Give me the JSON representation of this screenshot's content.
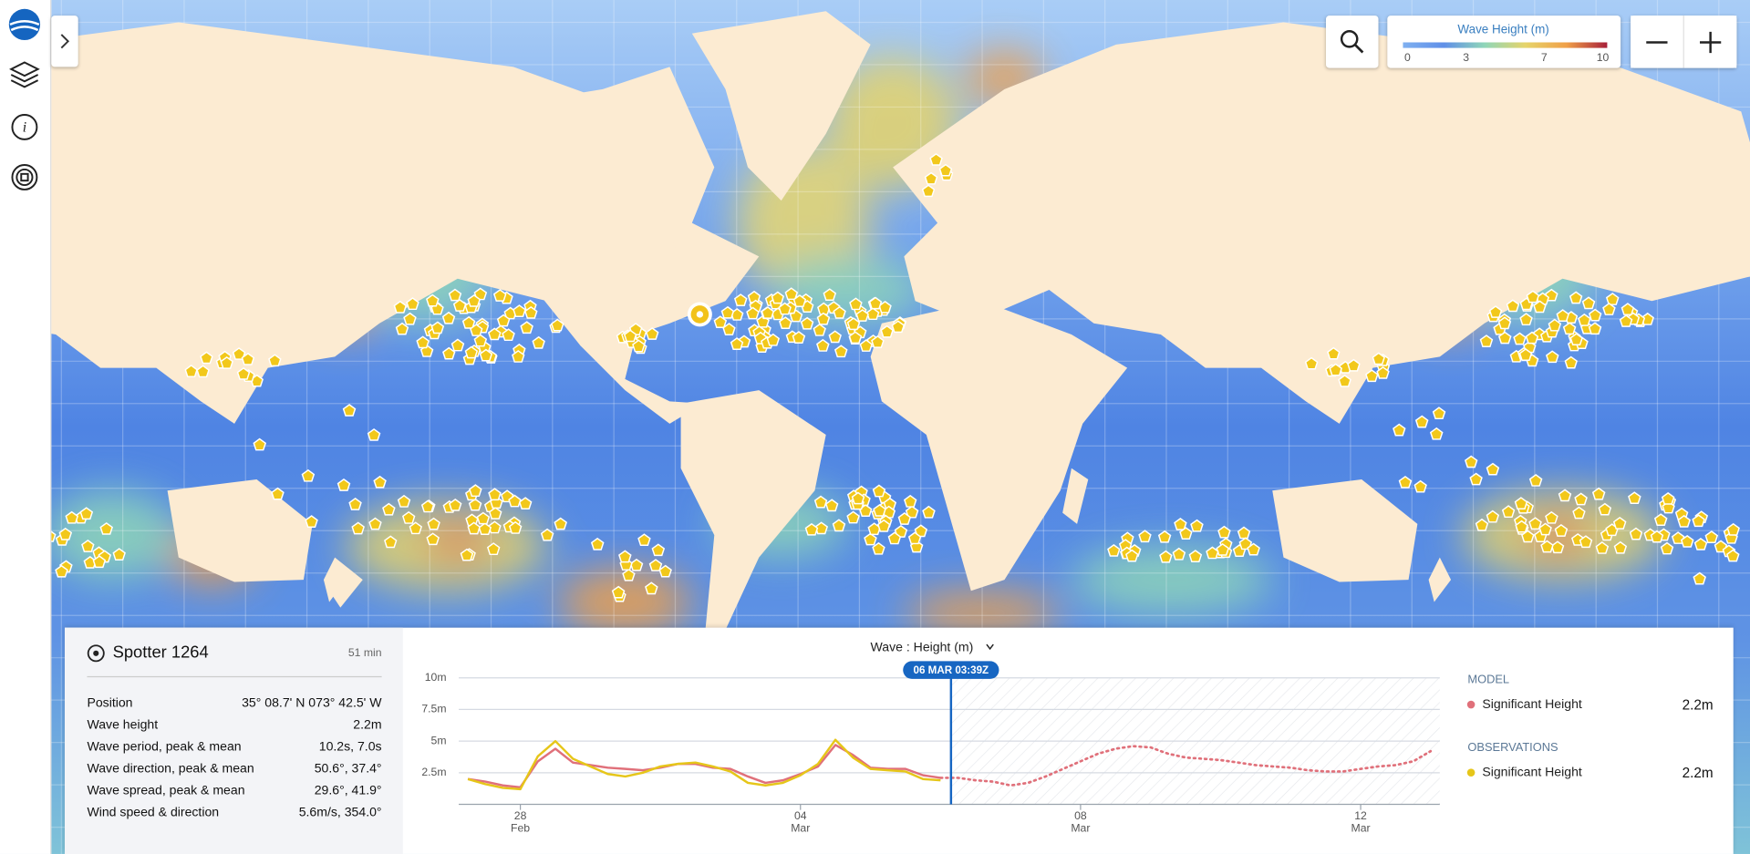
{
  "legend": {
    "title": "Wave Height (m)",
    "ticks": [
      0,
      3,
      7,
      10
    ]
  },
  "spotter": {
    "name": "Spotter 1264",
    "age": "51 min",
    "rows": [
      [
        "Position",
        "35° 08.7' N 073° 42.5' W"
      ],
      [
        "Wave height",
        "2.2m"
      ],
      [
        "Wave period, peak & mean",
        "10.2s, 7.0s"
      ],
      [
        "Wave direction, peak & mean",
        "50.6°, 37.4°"
      ],
      [
        "Wave spread, peak & mean",
        "29.6°, 41.9°"
      ],
      [
        "Wind speed & direction",
        "5.6m/s, 354.0°"
      ]
    ]
  },
  "chart_data": {
    "type": "line",
    "title": "Wave : Height (m)",
    "x": [
      27.25,
      27.5,
      27.75,
      28,
      28.25,
      28.5,
      28.75,
      29,
      29.25,
      29.5,
      29.75,
      30,
      30.25,
      30.5,
      30.75,
      31,
      31.25,
      31.5,
      31.75,
      32,
      32.25,
      32.5,
      32.75,
      33,
      33.25,
      33.5,
      33.75,
      34,
      34.25,
      34.5,
      34.75,
      35,
      35.25,
      35.5,
      35.75,
      36,
      36.25,
      36.5,
      36.75,
      37,
      37.25,
      37.5,
      37.75,
      38,
      38.25,
      38.5,
      38.75,
      39,
      39.25,
      39.5,
      39.75,
      40,
      40.25,
      40.5,
      40.75,
      41
    ],
    "xlim": [
      27.12,
      41.13
    ],
    "xticks": [
      {
        "value": 28,
        "label": "28",
        "sublabel": "Feb"
      },
      {
        "value": 32,
        "label": "04",
        "sublabel": "Mar"
      },
      {
        "value": 36,
        "label": "08",
        "sublabel": "Mar"
      },
      {
        "value": 40,
        "label": "12",
        "sublabel": "Mar"
      }
    ],
    "ylim": [
      0,
      10
    ],
    "yticks": [
      {
        "value": 2.5,
        "label": "2.5m"
      },
      {
        "value": 5,
        "label": "5m"
      },
      {
        "value": 7.5,
        "label": "7.5m"
      },
      {
        "value": 10,
        "label": "10m"
      }
    ],
    "marker": {
      "value": 34.15,
      "label": "06 MAR 03:39Z"
    },
    "series": [
      {
        "group": "MODEL",
        "name": "Significant Height",
        "color": "#e0707a",
        "legend_value": "2.2m",
        "values": [
          2.0,
          1.8,
          1.5,
          1.35,
          3.4,
          4.4,
          3.3,
          3.1,
          2.9,
          2.8,
          2.7,
          2.9,
          3.2,
          3.2,
          2.9,
          2.8,
          2.2,
          1.7,
          1.9,
          2.4,
          3.0,
          4.7,
          3.9,
          2.9,
          2.8,
          2.8,
          2.3,
          2.1,
          2.1,
          1.9,
          1.8,
          1.5,
          1.7,
          2.2,
          2.8,
          3.4,
          4.0,
          4.4,
          4.6,
          4.5,
          4.0,
          3.7,
          3.6,
          3.5,
          3.3,
          3.1,
          3.0,
          2.9,
          2.7,
          2.6,
          2.6,
          2.8,
          3.0,
          3.1,
          3.4,
          4.2
        ]
      },
      {
        "group": "OBSERVATIONS",
        "name": "Significant Height",
        "color": "#e6c619",
        "legend_value": "2.2m",
        "values": [
          2.0,
          1.6,
          1.3,
          1.2,
          3.8,
          5.0,
          3.6,
          3.0,
          2.4,
          2.2,
          2.5,
          3.0,
          3.2,
          3.3,
          3.0,
          2.6,
          1.7,
          1.5,
          1.7,
          2.3,
          3.2,
          5.1,
          3.7,
          2.8,
          2.7,
          2.6,
          2.0,
          1.9,
          null,
          null,
          null,
          null,
          null,
          null,
          null,
          null,
          null,
          null,
          null,
          null,
          null,
          null,
          null,
          null,
          null,
          null,
          null,
          null,
          null,
          null,
          null,
          null,
          null,
          null,
          null,
          null
        ]
      }
    ]
  }
}
